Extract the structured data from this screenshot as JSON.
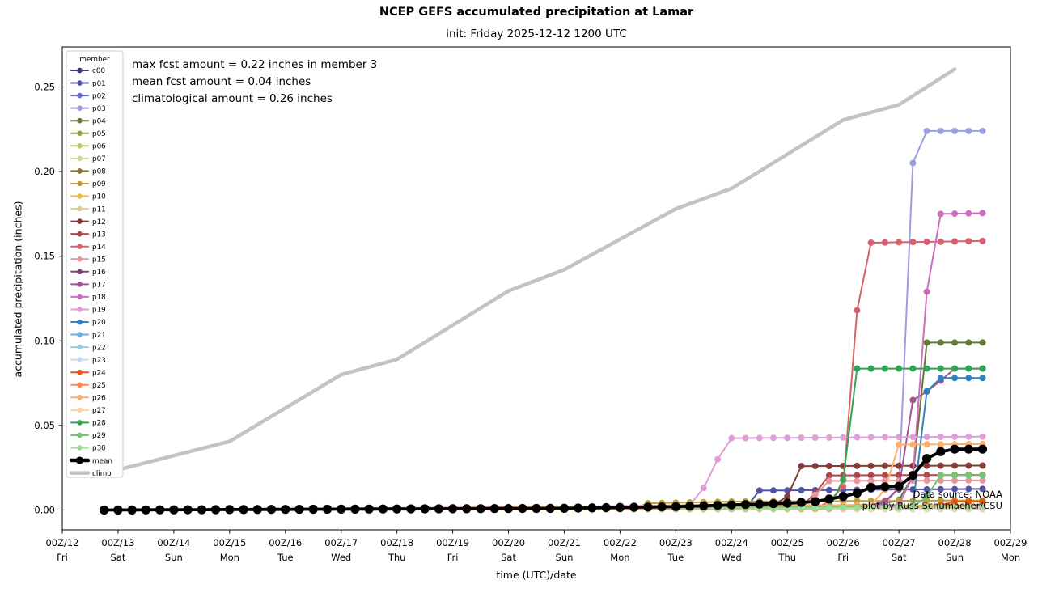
{
  "page": {
    "title": "NCEP GEFS accumulated precipitation at Lamar",
    "subtitle": "init: Friday 2025-12-12 1200 UTC"
  },
  "annotations": {
    "max": "max fcst amount = 0.22 inches in member 3",
    "mean": "mean fcst amount = 0.04 inches",
    "climo": "climatological amount = 0.26 inches"
  },
  "watermark": {
    "line1": "Data source: NOAA",
    "line2": "plot by Russ Schumacher/CSU"
  },
  "chart_data": {
    "type": "line",
    "title": "NCEP GEFS accumulated precipitation at Lamar",
    "subtitle": "init: Friday 2025-12-12 1200 UTC",
    "xlabel": "time (UTC)/date",
    "ylabel": "accumulated precipitation (inches)",
    "ylim": [
      -0.006,
      0.273
    ],
    "yticks": [
      "0.00",
      "0.05",
      "0.10",
      "0.15",
      "0.20",
      "0.25"
    ],
    "ytick_values": [
      0.0,
      0.05,
      0.1,
      0.15,
      0.2,
      0.25
    ],
    "x_days": 17,
    "xticks": [
      {
        "label": "00Z/12",
        "day": "Fri"
      },
      {
        "label": "00Z/13",
        "day": "Sat"
      },
      {
        "label": "00Z/14",
        "day": "Sun"
      },
      {
        "label": "00Z/15",
        "day": "Mon"
      },
      {
        "label": "00Z/16",
        "day": "Tue"
      },
      {
        "label": "00Z/17",
        "day": "Wed"
      },
      {
        "label": "00Z/18",
        "day": "Thu"
      },
      {
        "label": "00Z/19",
        "day": "Fri"
      },
      {
        "label": "00Z/20",
        "day": "Sat"
      },
      {
        "label": "00Z/21",
        "day": "Sun"
      },
      {
        "label": "00Z/22",
        "day": "Mon"
      },
      {
        "label": "00Z/23",
        "day": "Tue"
      },
      {
        "label": "00Z/24",
        "day": "Wed"
      },
      {
        "label": "00Z/25",
        "day": "Thu"
      },
      {
        "label": "00Z/26",
        "day": "Fri"
      },
      {
        "label": "00Z/27",
        "day": "Sat"
      },
      {
        "label": "00Z/28",
        "day": "Sun"
      },
      {
        "label": "00Z/29",
        "day": "Mon"
      }
    ],
    "legend_title": "member",
    "forecast_start_day": 0.75,
    "forecast_end_day": 16.5,
    "marker_interval_days": 0.25,
    "grid": false,
    "legend_position": "upper-left",
    "series": [
      {
        "name": "c00",
        "color": "#393b79",
        "keypoints": [
          [
            0.75,
            0
          ],
          [
            14,
            0.001
          ],
          [
            16.5,
            0.002
          ]
        ]
      },
      {
        "name": "p01",
        "color": "#5254a3",
        "keypoints": [
          [
            0.75,
            0
          ],
          [
            12.25,
            0.001
          ],
          [
            12.5,
            0.0115
          ],
          [
            16.5,
            0.0125
          ]
        ]
      },
      {
        "name": "p02",
        "color": "#6b6ecf",
        "keypoints": [
          [
            0.75,
            0
          ],
          [
            15,
            0.001
          ],
          [
            16.5,
            0.001
          ]
        ]
      },
      {
        "name": "p03",
        "color": "#9c9ede",
        "keypoints": [
          [
            0.75,
            0
          ],
          [
            14.5,
            0.001
          ],
          [
            14.75,
            0.004
          ],
          [
            15.0,
            0.013
          ],
          [
            15.25,
            0.205
          ],
          [
            15.5,
            0.224
          ],
          [
            16.5,
            0.224
          ]
        ]
      },
      {
        "name": "p04",
        "color": "#637939",
        "keypoints": [
          [
            0.75,
            0
          ],
          [
            14.5,
            0.002
          ],
          [
            15.0,
            0.006
          ],
          [
            15.25,
            0.02
          ],
          [
            15.5,
            0.099
          ],
          [
            16.5,
            0.099
          ]
        ]
      },
      {
        "name": "p05",
        "color": "#8ca252",
        "keypoints": [
          [
            0.75,
            0
          ],
          [
            14,
            0.001
          ],
          [
            16.5,
            0.001
          ]
        ]
      },
      {
        "name": "p06",
        "color": "#b5cf6b",
        "keypoints": [
          [
            0.75,
            0
          ],
          [
            13,
            0.001
          ],
          [
            16.5,
            0.002
          ]
        ]
      },
      {
        "name": "p07",
        "color": "#cedb9c",
        "keypoints": [
          [
            0.75,
            0
          ],
          [
            16.5,
            0.0005
          ]
        ]
      },
      {
        "name": "p08",
        "color": "#8c6d31",
        "keypoints": [
          [
            0.75,
            0
          ],
          [
            13,
            0.001
          ],
          [
            15.5,
            0.002
          ],
          [
            16.5,
            0.003
          ]
        ]
      },
      {
        "name": "p09",
        "color": "#bd9e39",
        "keypoints": [
          [
            0.75,
            0
          ],
          [
            10.25,
            0.001
          ],
          [
            10.5,
            0.004
          ],
          [
            12,
            0.005
          ],
          [
            16.5,
            0.0057
          ]
        ]
      },
      {
        "name": "p10",
        "color": "#e7ba52",
        "keypoints": [
          [
            0.75,
            0
          ],
          [
            11,
            0.001
          ],
          [
            13,
            0.002
          ],
          [
            16.5,
            0.003
          ]
        ]
      },
      {
        "name": "p11",
        "color": "#e7cb94",
        "keypoints": [
          [
            0.75,
            0
          ],
          [
            14,
            0.0005
          ],
          [
            16.5,
            0.001
          ]
        ]
      },
      {
        "name": "p12",
        "color": "#843c39",
        "keypoints": [
          [
            0.75,
            0
          ],
          [
            12,
            0.002
          ],
          [
            12.75,
            0.003
          ],
          [
            13.0,
            0.008
          ],
          [
            13.25,
            0.026
          ],
          [
            16.5,
            0.0263
          ]
        ]
      },
      {
        "name": "p13",
        "color": "#ad494a",
        "keypoints": [
          [
            0.75,
            0
          ],
          [
            13.25,
            0.002
          ],
          [
            13.5,
            0.01
          ],
          [
            13.75,
            0.0205
          ],
          [
            16.5,
            0.0208
          ]
        ]
      },
      {
        "name": "p14",
        "color": "#d6616b",
        "keypoints": [
          [
            0.75,
            0
          ],
          [
            13.5,
            0.001
          ],
          [
            13.75,
            0.005
          ],
          [
            14.0,
            0.014
          ],
          [
            14.25,
            0.118
          ],
          [
            14.5,
            0.158
          ],
          [
            16.5,
            0.159
          ]
        ]
      },
      {
        "name": "p15",
        "color": "#e7969c",
        "keypoints": [
          [
            0.75,
            0
          ],
          [
            13.25,
            0.001
          ],
          [
            13.5,
            0.009
          ],
          [
            13.75,
            0.0172
          ],
          [
            16.5,
            0.0175
          ]
        ]
      },
      {
        "name": "p16",
        "color": "#7b4173",
        "keypoints": [
          [
            0.75,
            0
          ],
          [
            13,
            0.001
          ],
          [
            16.5,
            0.0025
          ]
        ]
      },
      {
        "name": "p17",
        "color": "#a55194",
        "keypoints": [
          [
            0.75,
            0
          ],
          [
            14.5,
            0.003
          ],
          [
            14.75,
            0.005
          ],
          [
            15.0,
            0.013
          ],
          [
            15.25,
            0.065
          ],
          [
            15.5,
            0.07
          ],
          [
            15.75,
            0.0765
          ],
          [
            16.0,
            0.0836
          ],
          [
            16.5,
            0.0836
          ]
        ]
      },
      {
        "name": "p18",
        "color": "#ce6dbd",
        "keypoints": [
          [
            0.75,
            0
          ],
          [
            13,
            0.002
          ],
          [
            15.0,
            0.003
          ],
          [
            15.25,
            0.02
          ],
          [
            15.5,
            0.129
          ],
          [
            15.75,
            0.175
          ],
          [
            16.5,
            0.1755
          ]
        ]
      },
      {
        "name": "p19",
        "color": "#de9ed6",
        "keypoints": [
          [
            0.75,
            0
          ],
          [
            9.0,
            0.002
          ],
          [
            11.25,
            0.003
          ],
          [
            11.5,
            0.013
          ],
          [
            11.75,
            0.03
          ],
          [
            12.0,
            0.0425
          ],
          [
            16.5,
            0.0434
          ]
        ]
      },
      {
        "name": "p20",
        "color": "#3182bd",
        "keypoints": [
          [
            0.75,
            0
          ],
          [
            15.0,
            0.001
          ],
          [
            15.25,
            0.002
          ],
          [
            15.5,
            0.0702
          ],
          [
            15.75,
            0.078
          ],
          [
            16.5,
            0.078
          ]
        ]
      },
      {
        "name": "p21",
        "color": "#6baed6",
        "keypoints": [
          [
            0.75,
            0
          ],
          [
            15,
            0.001
          ],
          [
            16.5,
            0.0015
          ]
        ]
      },
      {
        "name": "p22",
        "color": "#9ecae1",
        "keypoints": [
          [
            0.75,
            0
          ],
          [
            13,
            0.001
          ],
          [
            16.5,
            0.002
          ]
        ]
      },
      {
        "name": "p23",
        "color": "#c6dbef",
        "keypoints": [
          [
            0.75,
            0
          ],
          [
            16.5,
            0.0005
          ]
        ]
      },
      {
        "name": "p24",
        "color": "#e6550d",
        "keypoints": [
          [
            0.75,
            0
          ],
          [
            15.5,
            0.001
          ],
          [
            15.75,
            0.003
          ],
          [
            16.0,
            0.005
          ],
          [
            16.5,
            0.005
          ]
        ]
      },
      {
        "name": "p25",
        "color": "#fd8d3c",
        "keypoints": [
          [
            0.75,
            0
          ],
          [
            14,
            0.001
          ],
          [
            16.5,
            0.002
          ]
        ]
      },
      {
        "name": "p26",
        "color": "#fdae6b",
        "keypoints": [
          [
            0.75,
            0
          ],
          [
            14.5,
            0.003
          ],
          [
            14.75,
            0.012
          ],
          [
            15.0,
            0.0387
          ],
          [
            16.5,
            0.039
          ]
        ]
      },
      {
        "name": "p27",
        "color": "#fdd0a2",
        "keypoints": [
          [
            0.75,
            0
          ],
          [
            14,
            0.0005
          ],
          [
            16.5,
            0.001
          ]
        ]
      },
      {
        "name": "p28",
        "color": "#31a354",
        "keypoints": [
          [
            0.75,
            0
          ],
          [
            13.75,
            0.001
          ],
          [
            14.0,
            0.018
          ],
          [
            14.25,
            0.0836
          ],
          [
            16.5,
            0.0836
          ]
        ]
      },
      {
        "name": "p29",
        "color": "#74c476",
        "keypoints": [
          [
            0.75,
            0
          ],
          [
            15.25,
            0.002
          ],
          [
            15.5,
            0.008
          ],
          [
            15.75,
            0.0206
          ],
          [
            16.5,
            0.0206
          ]
        ]
      },
      {
        "name": "p30",
        "color": "#a1d99b",
        "keypoints": [
          [
            0.75,
            0
          ],
          [
            13,
            0.001
          ],
          [
            16.5,
            0.002
          ]
        ]
      },
      {
        "name": "mean",
        "color": "#000000",
        "keypoints": [
          [
            0.75,
            0
          ],
          [
            9,
            0.001
          ],
          [
            11,
            0.002
          ],
          [
            12,
            0.003
          ],
          [
            13,
            0.004
          ],
          [
            13.5,
            0.005
          ],
          [
            13.75,
            0.0065
          ],
          [
            14.0,
            0.008
          ],
          [
            14.25,
            0.01
          ],
          [
            14.5,
            0.0134
          ],
          [
            15.0,
            0.014
          ],
          [
            15.25,
            0.0205
          ],
          [
            15.5,
            0.0305
          ],
          [
            15.75,
            0.0345
          ],
          [
            16.0,
            0.036
          ],
          [
            16.5,
            0.036
          ]
        ]
      },
      {
        "name": "climo",
        "color": "#c3c3c3",
        "keypoints": [
          [
            0.55,
            0.02
          ],
          [
            3,
            0.0406
          ],
          [
            5,
            0.08
          ],
          [
            6,
            0.089
          ],
          [
            8,
            0.1295
          ],
          [
            9,
            0.142
          ],
          [
            11,
            0.178
          ],
          [
            12,
            0.19
          ],
          [
            14,
            0.2305
          ],
          [
            15,
            0.2395
          ],
          [
            16,
            0.2605
          ]
        ]
      }
    ]
  }
}
